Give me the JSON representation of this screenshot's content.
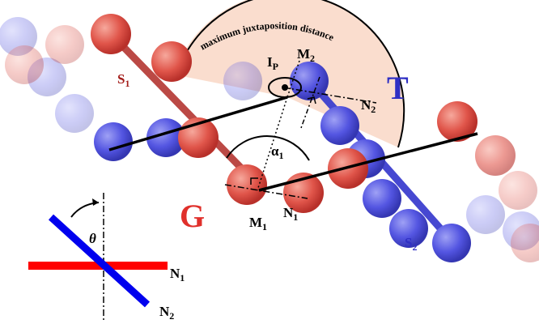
{
  "title": "maximum juxtaposition distance",
  "labels": {
    "s1": {
      "text": "S",
      "sub": "1"
    },
    "ip": {
      "text": "I",
      "sub": "P"
    },
    "m2": {
      "text": "M",
      "sub": "2"
    },
    "t": "T",
    "n2": {
      "text": "N",
      "sub": "2"
    },
    "alpha": {
      "text": "α",
      "sub": "1"
    },
    "g": "G",
    "m1": {
      "text": "M",
      "sub": "1"
    },
    "n1": {
      "text": "N",
      "sub": "1"
    },
    "s2": {
      "text": "S",
      "sub": "2"
    }
  },
  "legend": {
    "theta": "θ",
    "n1": {
      "text": "N",
      "sub": "1"
    },
    "n2": {
      "text": "N",
      "sub": "2"
    }
  }
}
